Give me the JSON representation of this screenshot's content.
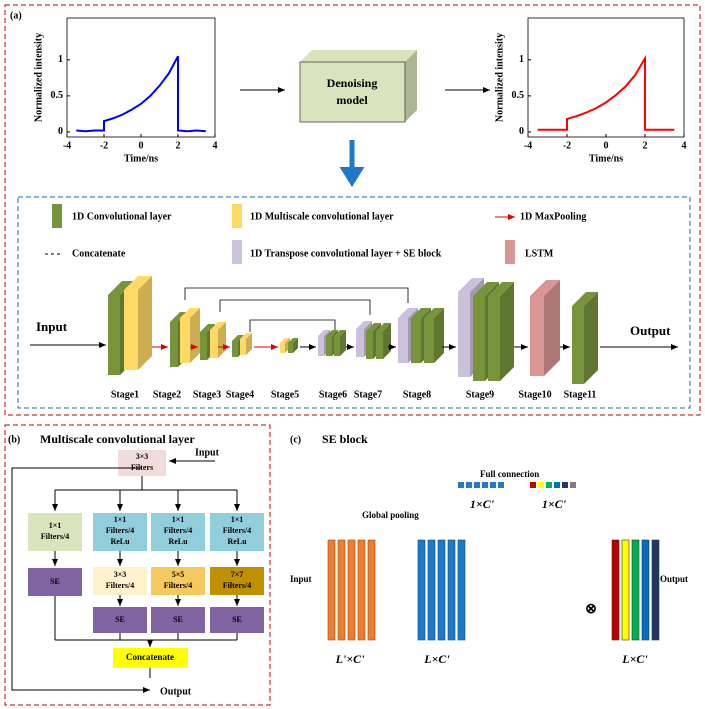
{
  "chart_data": [
    {
      "type": "line",
      "xlabel": "Time/ns",
      "ylabel": "Normalized intensity",
      "color": "#0000ff",
      "x": [
        -3.5,
        -3,
        -2.5,
        -2,
        -2,
        -1.5,
        -1,
        -0.5,
        0,
        0.5,
        1,
        1.5,
        2,
        2,
        2.5,
        3,
        3.5
      ],
      "values": [
        0.02,
        0.01,
        0.02,
        0.02,
        0.15,
        0.19,
        0.24,
        0.31,
        0.39,
        0.5,
        0.64,
        0.81,
        1.05,
        0.02,
        0.01,
        0.02,
        0.01
      ],
      "xlim": [
        -4,
        4
      ],
      "ylim": [
        -0.07,
        1.58
      ],
      "xticks": [
        -4,
        -2,
        0,
        2,
        4
      ],
      "yticks": [
        0,
        0.5,
        1
      ]
    },
    {
      "type": "line",
      "xlabel": "Time/ns",
      "ylabel": "Normalized intensity",
      "color": "#ff0000",
      "x": [
        -3.5,
        -3,
        -2.5,
        -2,
        -2,
        -1.5,
        -1,
        -0.5,
        0,
        0.5,
        1,
        1.5,
        2,
        2,
        2.5,
        3,
        3.5
      ],
      "values": [
        0.03,
        0.03,
        0.03,
        0.03,
        0.18,
        0.22,
        0.27,
        0.33,
        0.41,
        0.51,
        0.63,
        0.79,
        1.02,
        0.03,
        0.03,
        0.03,
        0.03
      ],
      "xlim": [
        -4,
        4
      ],
      "ylim": [
        -0.07,
        1.58
      ],
      "xticks": [
        -4,
        -2,
        0,
        2,
        4
      ],
      "yticks": [
        0,
        0.5,
        1
      ]
    }
  ],
  "panel_a": {
    "label": "(a)",
    "model": {
      "lines": [
        "Denoising",
        "model"
      ]
    },
    "legend": {
      "conv": "1D Convolutional layer",
      "multiscale": "1D Multiscale convolutional layer",
      "maxpool": "1D MaxPooling",
      "concat": "Concatenate",
      "transpose": "1D Transpose convolutional layer + SE block",
      "lstm": "LSTM"
    },
    "input": "Input",
    "output": "Output",
    "stages": [
      "Stage1",
      "Stage2",
      "Stage3",
      "Stage4",
      "Stage5",
      "Stage6",
      "Stage7",
      "Stage8",
      "Stage9",
      "Stage10",
      "Stage11"
    ]
  },
  "panel_b": {
    "label": "(b)",
    "title": "Multiscale convolutional layer",
    "input": "Input",
    "first": {
      "lines": [
        "3×3",
        "Filters"
      ]
    },
    "branches": [
      {
        "lines": [
          "1×1",
          "Filters/4"
        ]
      },
      {
        "lines": [
          "1×1",
          "Filters/4",
          "ReLu"
        ]
      },
      {
        "lines": [
          "1×1",
          "Filters/4",
          "ReLu"
        ]
      },
      {
        "lines": [
          "1×1",
          "Filters/4",
          "ReLu"
        ]
      }
    ],
    "second": [
      {
        "lines": [
          "3×3",
          "Filters/4"
        ]
      },
      {
        "lines": [
          "5×5",
          "Filters/4"
        ]
      },
      {
        "lines": [
          "7×7",
          "Filters/4"
        ]
      }
    ],
    "se": [
      "SE",
      "SE",
      "SE",
      "SE"
    ],
    "concat": "Concatenate",
    "output": "Output"
  },
  "panel_c": {
    "label": "(c)",
    "title": "SE block",
    "full_connection": "Full connection",
    "global_pooling": "Global pooling",
    "input": "Input",
    "output": "Output",
    "sizes": [
      "1×C'",
      "1×C'",
      "L'×C'",
      "L×C'",
      "L×C'"
    ],
    "operator": "⊗"
  }
}
